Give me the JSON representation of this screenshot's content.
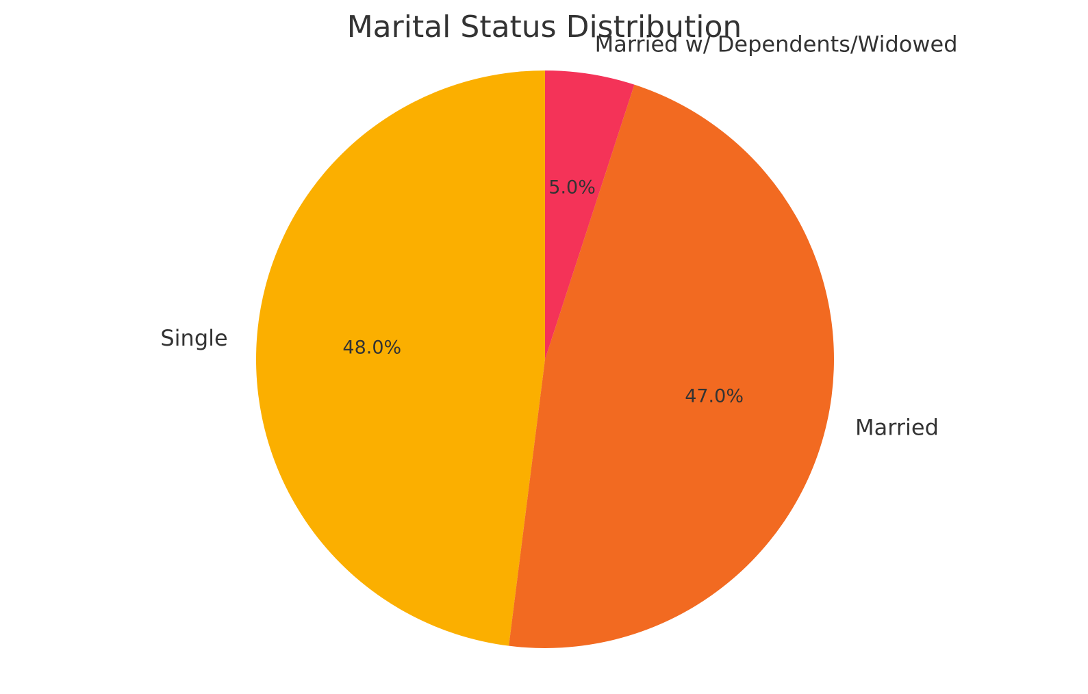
{
  "chart_data": {
    "type": "pie",
    "title": "Marital Status Distribution",
    "categories": [
      "Single",
      "Married",
      "Married w/ Dependents/Widowed"
    ],
    "values": [
      48.0,
      47.0,
      5.0
    ],
    "value_labels": [
      "48.0%",
      "47.0%",
      "5.0%"
    ],
    "colors": [
      "#FBAF00",
      "#F26A21",
      "#F43358"
    ],
    "start_angle_deg": 90,
    "direction": "counterclockwise",
    "legend": "none"
  }
}
